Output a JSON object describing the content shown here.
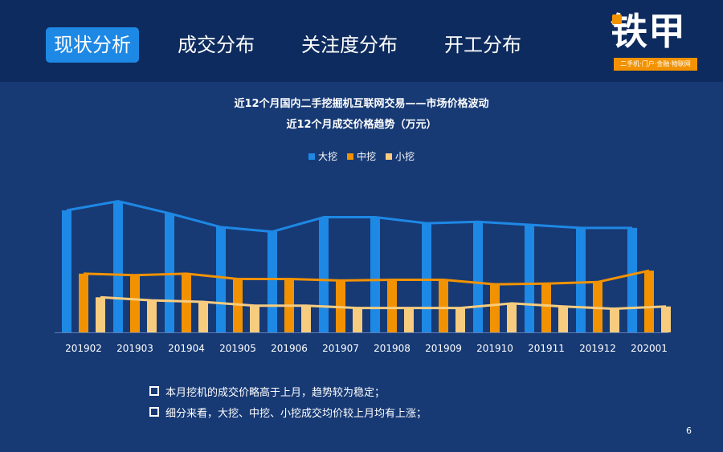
{
  "nav": {
    "tabs": [
      {
        "label": "现状分析",
        "active": true
      },
      {
        "label": "成交分布",
        "active": false
      },
      {
        "label": "关注度分布",
        "active": false
      },
      {
        "label": "开工分布",
        "active": false
      }
    ]
  },
  "logo": {
    "text": "铁甲",
    "tagline": "二手机·门户·金融·物联网"
  },
  "chart_data": {
    "type": "bar",
    "title": "近12个月国内二手挖掘机互联网交易——市场价格波动",
    "subtitle": "近12个月成交价格趋势（万元）",
    "categories": [
      "201902",
      "201903",
      "201904",
      "201905",
      "201906",
      "201907",
      "201908",
      "201909",
      "201910",
      "201911",
      "201912",
      "202001"
    ],
    "series": [
      {
        "name": "大挖",
        "color": "#1e88e5",
        "values": [
          160,
          172,
          156,
          138,
          132,
          151,
          151,
          143,
          145,
          141,
          137,
          137
        ]
      },
      {
        "name": "中挖",
        "color": "#f29200",
        "values": [
          77,
          75,
          77,
          70,
          70,
          68,
          69,
          69,
          63,
          64,
          66,
          81
        ]
      },
      {
        "name": "小挖",
        "color": "#f8cc7f",
        "values": [
          46,
          42,
          40,
          35,
          35,
          32,
          32,
          32,
          38,
          34,
          31,
          34
        ]
      }
    ],
    "ylim": [
      0,
      200
    ],
    "legend_position": "top-center",
    "grid": false
  },
  "notes": [
    "本月挖机的成交价略高于上月，趋势较为稳定；",
    "细分来看，大挖、中挖、小挖成交均价较上月均有上涨；"
  ],
  "page_number": "6",
  "colors": {
    "background": "#173a75",
    "topbar": "#0d2b5e",
    "accent": "#1e88e5",
    "orange": "#f29200"
  }
}
